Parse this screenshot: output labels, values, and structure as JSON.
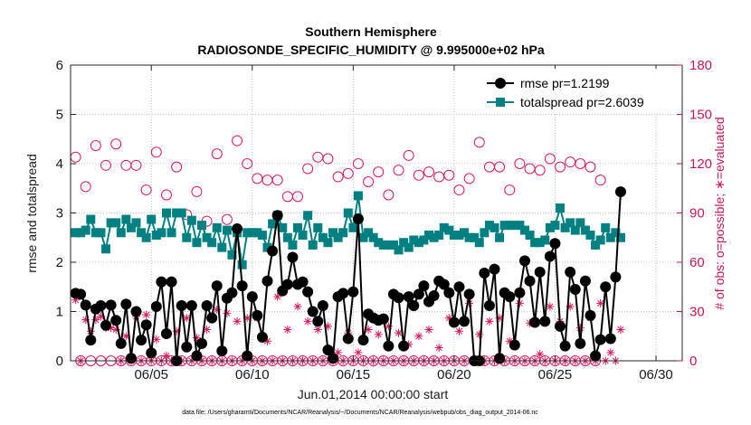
{
  "chart_data": {
    "type": "line",
    "title": "Southern Hemisphere",
    "subtitle": "RADIOSONDE_SPECIFIC_HUMIDITY @ 9.995000e+02 hPa",
    "xlabel": "Jun.01,2014 00:00:00 start",
    "ylabel": "rmse and totalspread",
    "ylabel_right": "# of obs: o=possible; ∗=evaluated",
    "footnote": "data file: /Users/gharamti/Documents/NCAR/Reanalysis/~/Documents/NCAR/Reanalysis/webpub/obs_diag_output_2014-06.nc",
    "xlim": [
      1,
      31.3
    ],
    "ylim": [
      0,
      6
    ],
    "ylim_right": [
      0,
      180
    ],
    "x_ticks": [
      5,
      10,
      15,
      20,
      25,
      30
    ],
    "x_tick_labels": [
      "06/05",
      "06/10",
      "06/15",
      "06/20",
      "06/25",
      "06/30"
    ],
    "y_ticks": [
      0,
      1,
      2,
      3,
      4,
      5,
      6
    ],
    "y_tick_labels": [
      "0",
      "1",
      "2",
      "3",
      "4",
      "5",
      "6"
    ],
    "y_ticks_right": [
      0,
      30,
      60,
      90,
      120,
      150,
      180
    ],
    "y_tick_labels_right": [
      "0",
      "30",
      "60",
      "90",
      "120",
      "150",
      "180"
    ],
    "legend_position": "top-right",
    "x_start": 1.25,
    "x_step": 0.25,
    "series": [
      {
        "name": "rmse pr=1.2199",
        "color": "#000000",
        "marker": "circle",
        "values": [
          1.37,
          1.35,
          1.13,
          0.42,
          1.05,
          1.12,
          0.72,
          1.13,
          0.82,
          0.35,
          1.15,
          0.05,
          1.0,
          0.42,
          0.73,
          0.16,
          1.1,
          1.6,
          0.55,
          1.6,
          0.0,
          1.12,
          0.28,
          1.12,
          0.1,
          0.35,
          1.12,
          0.87,
          1.52,
          0.2,
          1.27,
          1.38,
          2.68,
          1.52,
          0.1,
          1.3,
          0.92,
          0.48,
          1.62,
          2.23,
          2.95,
          1.42,
          1.55,
          2.1,
          1.55,
          1.6,
          1.4,
          1.0,
          0.8,
          1.12,
          0.22,
          0.05,
          1.3,
          1.37,
          0.45,
          1.4,
          2.88,
          0.42,
          0.95,
          0.87,
          0.82,
          0.85,
          0.3,
          1.35,
          1.28,
          0.3,
          1.3,
          1.12,
          1.35,
          1.52,
          1.2,
          1.32,
          1.62,
          1.55,
          1.38,
          0.78,
          1.5,
          0.8,
          1.35,
          0.0,
          0.0,
          1.78,
          1.12,
          1.86,
          0.05,
          1.38,
          1.3,
          0.32,
          1.38,
          2.03,
          1.62,
          0.78,
          1.8,
          0.8,
          2.12,
          2.38,
          0.7,
          0.3,
          1.8,
          1.45,
          0.35,
          1.62,
          0.92,
          0.1,
          0.43,
          1.5,
          0.45,
          1.7,
          3.43
        ]
      },
      {
        "name": "totalspread pr=2.6039",
        "color": "#008080",
        "marker": "square",
        "values": [
          2.6,
          2.6,
          2.65,
          2.87,
          2.6,
          2.6,
          2.27,
          2.8,
          2.8,
          2.6,
          2.87,
          2.7,
          2.8,
          2.6,
          2.5,
          2.87,
          2.55,
          2.6,
          3.0,
          2.6,
          3.0,
          3.0,
          2.5,
          2.85,
          2.4,
          2.75,
          2.5,
          2.4,
          2.7,
          2.3,
          2.65,
          2.15,
          2.6,
          1.95,
          2.6,
          2.6,
          2.6,
          2.55,
          2.3,
          2.78,
          2.95,
          2.7,
          2.5,
          2.35,
          2.7,
          2.55,
          2.95,
          2.35,
          2.7,
          2.5,
          2.4,
          2.6,
          2.5,
          2.6,
          3.0,
          2.7,
          3.35,
          2.5,
          2.6,
          2.5,
          2.4,
          2.35,
          2.35,
          2.35,
          2.25,
          2.4,
          2.3,
          2.45,
          2.4,
          2.45,
          2.55,
          2.5,
          2.55,
          2.7,
          2.65,
          2.55,
          2.55,
          2.6,
          2.5,
          2.5,
          2.4,
          2.6,
          2.75,
          2.7,
          2.5,
          2.75,
          2.75,
          2.75,
          2.75,
          2.65,
          2.55,
          2.4,
          2.4,
          2.45,
          2.7,
          2.75,
          3.1,
          2.7,
          2.8,
          2.65,
          2.8,
          2.65,
          2.55,
          2.35,
          2.45,
          2.7,
          2.5,
          2.6,
          2.5
        ]
      },
      {
        "name": "possible",
        "axis": "right",
        "color": "#d81b60",
        "marker": "open-circle",
        "values": [
          124,
          0,
          106,
          0,
          131,
          0,
          119,
          0,
          132,
          0,
          119,
          0,
          119,
          0,
          104,
          0,
          127,
          0,
          101,
          0,
          118,
          0,
          89,
          0,
          103,
          0,
          85,
          0,
          126,
          0,
          86,
          0,
          134,
          0,
          120,
          0,
          111,
          0,
          110,
          0,
          110,
          0,
          100,
          0,
          100,
          0,
          117,
          0,
          124,
          0,
          123,
          0,
          112,
          0,
          114,
          0,
          120,
          0,
          109,
          0,
          115,
          0,
          101,
          0,
          116,
          0,
          125,
          0,
          113,
          0,
          115,
          0,
          112,
          0,
          113,
          0,
          104,
          0,
          111,
          0,
          133,
          0,
          118,
          0,
          118,
          0,
          104,
          0,
          120,
          0,
          117,
          0,
          116,
          0,
          123,
          0,
          118,
          0,
          121,
          0,
          120,
          0,
          118,
          0,
          110
        ]
      },
      {
        "name": "evaluated",
        "axis": "right",
        "color": "#d81b60",
        "marker": "asterisk",
        "values": [
          37,
          0,
          25,
          18,
          25,
          27,
          20,
          20,
          19,
          0,
          15,
          0,
          27,
          0,
          28,
          0,
          13,
          0,
          3,
          0,
          18,
          0,
          26,
          0,
          14,
          0,
          19,
          0,
          31,
          0,
          29,
          0,
          24,
          0,
          26,
          0,
          26,
          0,
          12,
          0,
          39,
          0,
          19,
          0,
          33,
          0,
          24,
          0,
          19,
          0,
          21,
          0,
          5,
          0,
          17,
          0,
          5,
          0,
          19,
          0,
          16,
          0,
          21,
          0,
          17,
          0,
          10,
          0,
          15,
          0,
          19,
          0,
          8,
          0,
          26,
          0,
          18,
          0,
          35,
          0,
          16,
          0,
          24,
          0,
          26,
          0,
          12,
          0,
          35,
          0,
          23,
          0,
          4,
          0,
          33,
          0,
          24,
          0,
          33,
          0,
          20,
          0,
          26,
          0,
          35,
          0,
          5,
          0,
          19
        ]
      }
    ]
  }
}
